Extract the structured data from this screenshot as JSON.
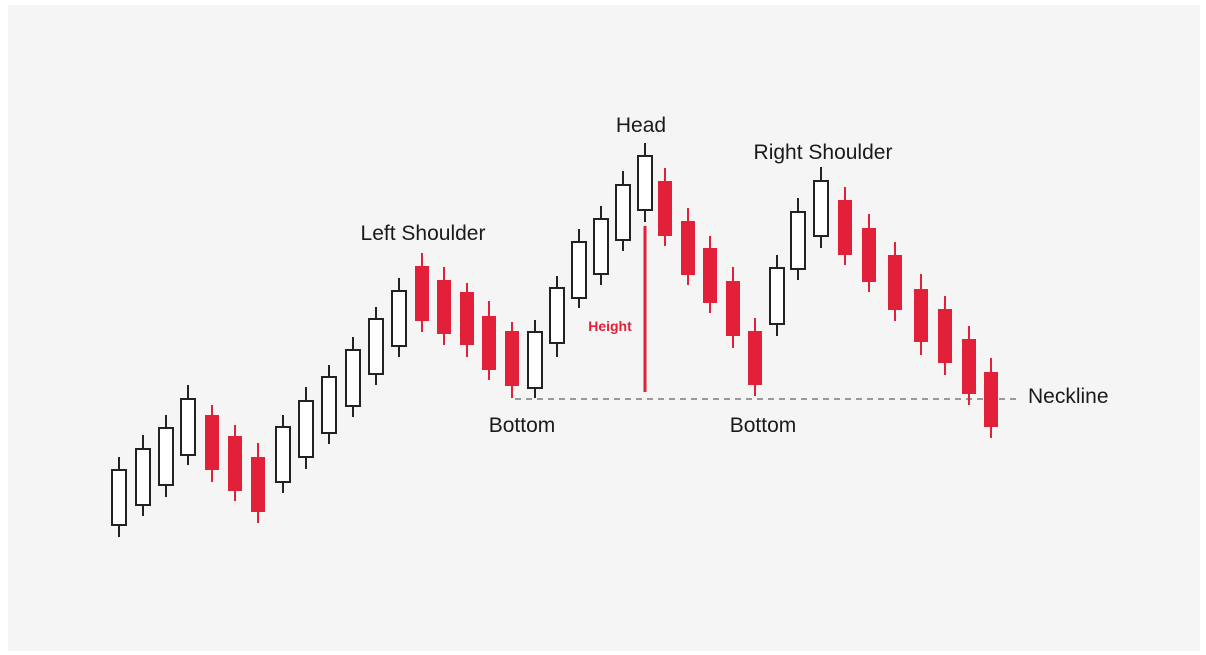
{
  "labels": {
    "left_shoulder": "Left Shoulder",
    "head": "Head",
    "right_shoulder": "Right Shoulder",
    "bottom_left": "Bottom",
    "bottom_right": "Bottom",
    "neckline": "Neckline",
    "height": "Height"
  }
}
